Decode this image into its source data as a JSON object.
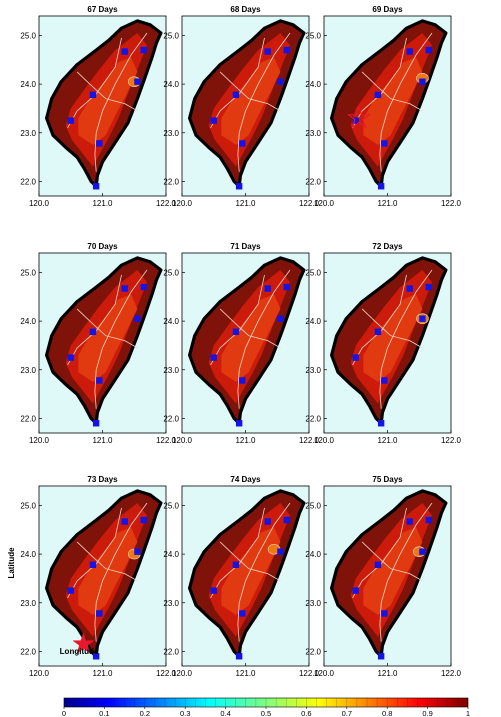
{
  "chart_data": {
    "type": "heatmap",
    "layout": "3x3 small multiples",
    "colormap": "jet",
    "colorbar": {
      "range": [
        0,
        1
      ],
      "ticks": [
        "0",
        "0.1",
        "0.2",
        "0.3",
        "0.4",
        "0.5",
        "0.6",
        "0.7",
        "0.8",
        "0.9",
        "1"
      ]
    },
    "xlabel": "Longitude",
    "ylabel": "Latitude",
    "xlim": [
      120.0,
      122.0
    ],
    "ylim": [
      21.7,
      25.4
    ],
    "xticks": [
      "120.0",
      "121.0",
      "122.0"
    ],
    "yticks": [
      "22.0",
      "23.0",
      "24.0",
      "25.0"
    ],
    "stations": [
      {
        "lon": 120.5,
        "lat": 23.25
      },
      {
        "lon": 120.85,
        "lat": 23.78
      },
      {
        "lon": 120.95,
        "lat": 22.78
      },
      {
        "lon": 121.35,
        "lat": 24.67
      },
      {
        "lon": 121.65,
        "lat": 24.7
      },
      {
        "lon": 121.55,
        "lat": 24.05
      },
      {
        "lon": 120.9,
        "lat": 21.9
      }
    ],
    "panels": [
      {
        "title": "67 Days",
        "highlight": {
          "lon": 121.5,
          "lat": 24.05,
          "value": 0.8
        }
      },
      {
        "title": "68 Days",
        "highlight": null
      },
      {
        "title": "69 Days",
        "highlight": {
          "lon": 121.55,
          "lat": 24.12,
          "value": 0.8
        },
        "marker": {
          "lon": 120.55,
          "lat": 23.3,
          "type": "star-outline"
        }
      },
      {
        "title": "70 Days",
        "highlight": null
      },
      {
        "title": "71 Days",
        "highlight": null
      },
      {
        "title": "72 Days",
        "highlight": {
          "lon": 121.55,
          "lat": 24.05,
          "value": 0.8
        }
      },
      {
        "title": "73 Days",
        "highlight": {
          "lon": 121.5,
          "lat": 24.0,
          "value": 0.8
        },
        "marker": {
          "lon": 120.7,
          "lat": 22.15,
          "type": "star-filled"
        }
      },
      {
        "title": "74 Days",
        "highlight": {
          "lon": 121.45,
          "lat": 24.1,
          "value": 0.8
        }
      },
      {
        "title": "75 Days",
        "highlight": {
          "lon": 121.5,
          "lat": 24.05,
          "value": 0.8
        }
      }
    ],
    "colors": {
      "ocean": "#dff8f8",
      "coast": "#000000",
      "deep_red": "#7f1209",
      "red": "#cd1b0b",
      "bright_red": "#e23a10",
      "highlight": "#f2780f",
      "contour": "#f2d5c5",
      "station": "#1414e6",
      "marker": "#e8172c"
    }
  }
}
